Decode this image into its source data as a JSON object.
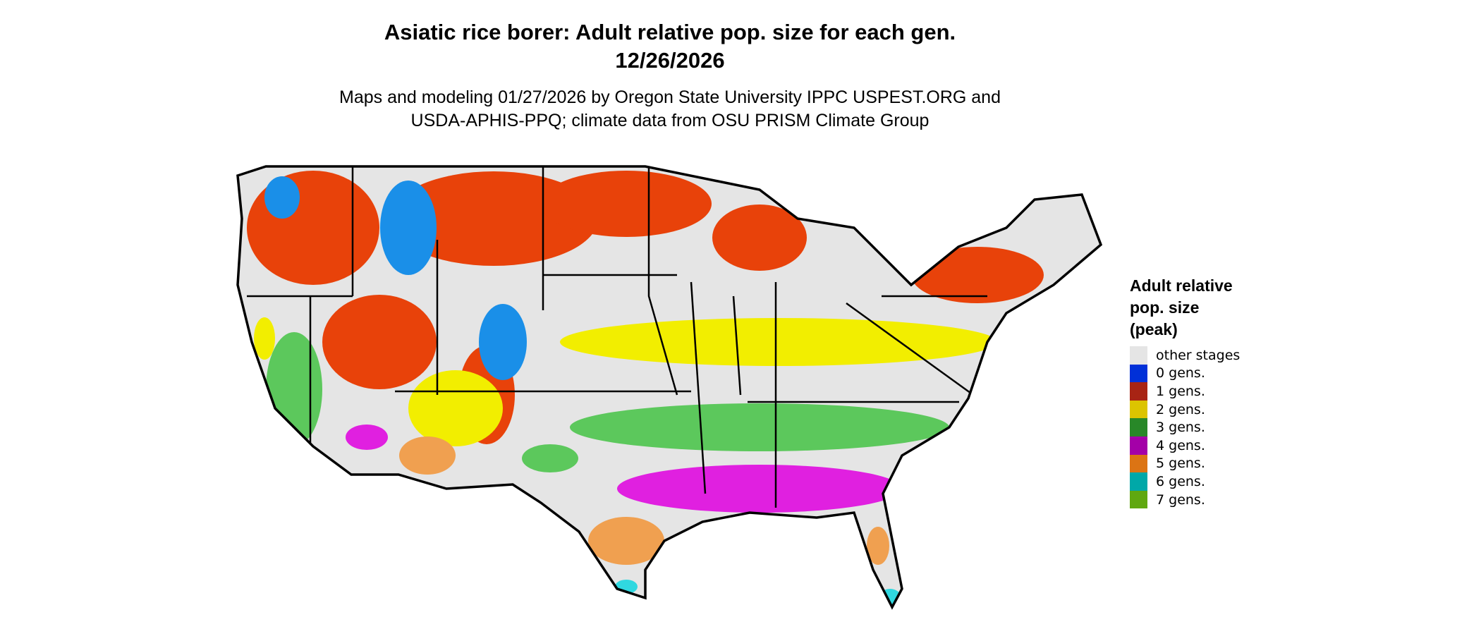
{
  "title_line1": "Asiatic rice borer: Adult relative pop. size for each gen.",
  "title_line2": "12/26/2026",
  "subtitle_line1": "Maps and modeling 01/27/2026 by Oregon State University IPPC USPEST.ORG and",
  "subtitle_line2": "USDA-APHIS-PPQ; climate data from OSU PRISM Climate Group",
  "legend": {
    "title_lines": [
      "Adult relative",
      "pop. size",
      "(peak)"
    ],
    "items": [
      {
        "label": "other stages",
        "color": "#e5e5e5"
      },
      {
        "label": "0 gens.",
        "color": "#0030d8"
      },
      {
        "label": "1 gens.",
        "color": "#a82414"
      },
      {
        "label": "2 gens.",
        "color": "#dcc400"
      },
      {
        "label": "3 gens.",
        "color": "#288828"
      },
      {
        "label": "4 gens.",
        "color": "#a400a8"
      },
      {
        "label": "5 gens.",
        "color": "#dc7414"
      },
      {
        "label": "6 gens.",
        "color": "#00a8a8"
      },
      {
        "label": "7 gens.",
        "color": "#60a810"
      }
    ]
  },
  "map_colors": {
    "background": "#e5e5e5",
    "gen0": "#1a8fe8",
    "gen1": "#e8420a",
    "gen2": "#f2ee00",
    "gen3": "#5cc85c",
    "gen4": "#e020e0",
    "gen5": "#f0a050",
    "gen6": "#30d8e0",
    "border": "#000000"
  }
}
